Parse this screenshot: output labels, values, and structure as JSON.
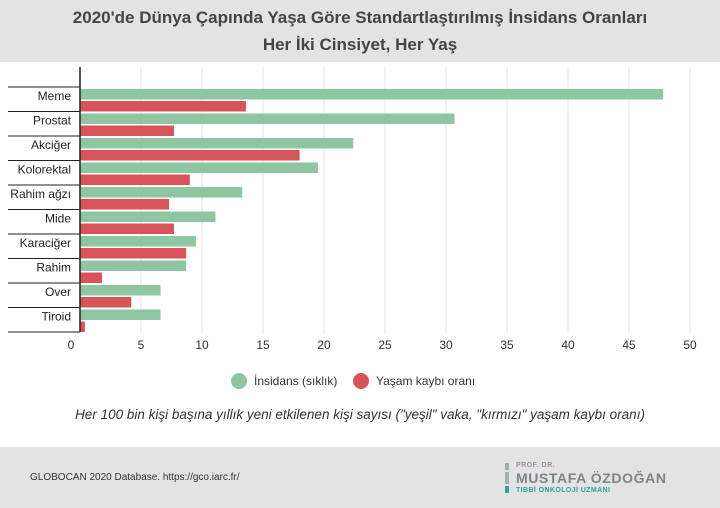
{
  "header": {
    "title_line1": "2020'de Dünya Çapında Yaşa Göre Standartlaştırılmış İnsidans Oranları",
    "title_line2": "Her İki Cinsiyet, Her Yaş"
  },
  "chart_data": {
    "type": "bar",
    "orientation": "horizontal",
    "categories": [
      "Meme",
      "Prostat",
      "Akciğer",
      "Kolorektal",
      "Rahim ağzı",
      "Mide",
      "Karaciğer",
      "Rahim",
      "Over",
      "Tiroid"
    ],
    "series": [
      {
        "name": "İnsidans (sıklık)",
        "color": "#8ec6a2",
        "values": [
          47.8,
          30.7,
          22.4,
          19.5,
          13.3,
          11.1,
          9.5,
          8.7,
          6.6,
          6.6
        ]
      },
      {
        "name": "Yaşam kaybı oranı",
        "color": "#d9535b",
        "values": [
          13.6,
          7.7,
          18.0,
          9.0,
          7.3,
          7.7,
          8.7,
          1.8,
          4.2,
          0.4
        ]
      }
    ],
    "xlim": [
      0,
      50
    ],
    "x_ticks": [
      "0",
      "5",
      "10",
      "15",
      "20",
      "25",
      "30",
      "35",
      "40",
      "45",
      "50"
    ],
    "grid": true,
    "legend_position": "bottom"
  },
  "note": "Her 100 bin kişi başına yıllık yeni etkilenen kişi sayısı (\"yeşil\" vaka, \"kırmızı\" yaşam kaybı oranı)",
  "footer": {
    "source": "GLOBOCAN 2020 Database. https://gco.iarc.fr/",
    "logo_line1": "PROF. DR.",
    "logo_line2": "MUSTAFA ÖZDOĞAN",
    "logo_line3": "TIBBİ ONKOLOJİ UZMANI"
  }
}
